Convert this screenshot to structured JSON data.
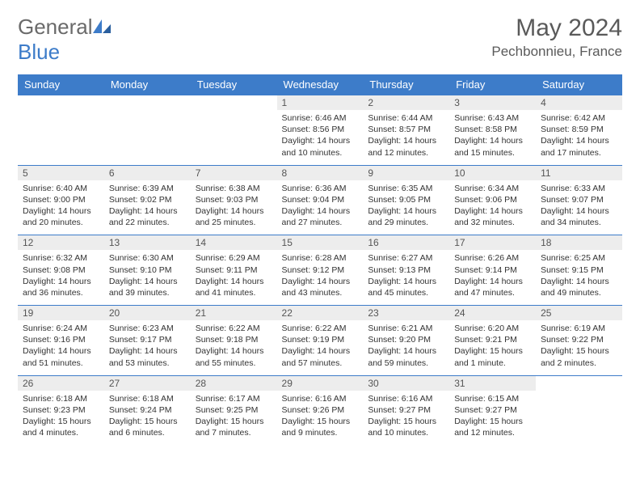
{
  "logo": {
    "textGray": "General",
    "textBlue": "Blue"
  },
  "title": {
    "month": "May 2024",
    "location": "Pechbonnieu, France"
  },
  "weekdays": [
    "Sunday",
    "Monday",
    "Tuesday",
    "Wednesday",
    "Thursday",
    "Friday",
    "Saturday"
  ],
  "colors": {
    "headerBg": "#3d7cc9",
    "headerText": "#ffffff",
    "dayNumBg": "#ededed",
    "bodyText": "#333333",
    "logoGray": "#6a6a6a",
    "logoBlue": "#3d7cc9"
  },
  "weeks": [
    [
      {
        "n": "",
        "sr": "",
        "ss": "",
        "dl": ""
      },
      {
        "n": "",
        "sr": "",
        "ss": "",
        "dl": ""
      },
      {
        "n": "",
        "sr": "",
        "ss": "",
        "dl": ""
      },
      {
        "n": "1",
        "sr": "Sunrise: 6:46 AM",
        "ss": "Sunset: 8:56 PM",
        "dl": "Daylight: 14 hours and 10 minutes."
      },
      {
        "n": "2",
        "sr": "Sunrise: 6:44 AM",
        "ss": "Sunset: 8:57 PM",
        "dl": "Daylight: 14 hours and 12 minutes."
      },
      {
        "n": "3",
        "sr": "Sunrise: 6:43 AM",
        "ss": "Sunset: 8:58 PM",
        "dl": "Daylight: 14 hours and 15 minutes."
      },
      {
        "n": "4",
        "sr": "Sunrise: 6:42 AM",
        "ss": "Sunset: 8:59 PM",
        "dl": "Daylight: 14 hours and 17 minutes."
      }
    ],
    [
      {
        "n": "5",
        "sr": "Sunrise: 6:40 AM",
        "ss": "Sunset: 9:00 PM",
        "dl": "Daylight: 14 hours and 20 minutes."
      },
      {
        "n": "6",
        "sr": "Sunrise: 6:39 AM",
        "ss": "Sunset: 9:02 PM",
        "dl": "Daylight: 14 hours and 22 minutes."
      },
      {
        "n": "7",
        "sr": "Sunrise: 6:38 AM",
        "ss": "Sunset: 9:03 PM",
        "dl": "Daylight: 14 hours and 25 minutes."
      },
      {
        "n": "8",
        "sr": "Sunrise: 6:36 AM",
        "ss": "Sunset: 9:04 PM",
        "dl": "Daylight: 14 hours and 27 minutes."
      },
      {
        "n": "9",
        "sr": "Sunrise: 6:35 AM",
        "ss": "Sunset: 9:05 PM",
        "dl": "Daylight: 14 hours and 29 minutes."
      },
      {
        "n": "10",
        "sr": "Sunrise: 6:34 AM",
        "ss": "Sunset: 9:06 PM",
        "dl": "Daylight: 14 hours and 32 minutes."
      },
      {
        "n": "11",
        "sr": "Sunrise: 6:33 AM",
        "ss": "Sunset: 9:07 PM",
        "dl": "Daylight: 14 hours and 34 minutes."
      }
    ],
    [
      {
        "n": "12",
        "sr": "Sunrise: 6:32 AM",
        "ss": "Sunset: 9:08 PM",
        "dl": "Daylight: 14 hours and 36 minutes."
      },
      {
        "n": "13",
        "sr": "Sunrise: 6:30 AM",
        "ss": "Sunset: 9:10 PM",
        "dl": "Daylight: 14 hours and 39 minutes."
      },
      {
        "n": "14",
        "sr": "Sunrise: 6:29 AM",
        "ss": "Sunset: 9:11 PM",
        "dl": "Daylight: 14 hours and 41 minutes."
      },
      {
        "n": "15",
        "sr": "Sunrise: 6:28 AM",
        "ss": "Sunset: 9:12 PM",
        "dl": "Daylight: 14 hours and 43 minutes."
      },
      {
        "n": "16",
        "sr": "Sunrise: 6:27 AM",
        "ss": "Sunset: 9:13 PM",
        "dl": "Daylight: 14 hours and 45 minutes."
      },
      {
        "n": "17",
        "sr": "Sunrise: 6:26 AM",
        "ss": "Sunset: 9:14 PM",
        "dl": "Daylight: 14 hours and 47 minutes."
      },
      {
        "n": "18",
        "sr": "Sunrise: 6:25 AM",
        "ss": "Sunset: 9:15 PM",
        "dl": "Daylight: 14 hours and 49 minutes."
      }
    ],
    [
      {
        "n": "19",
        "sr": "Sunrise: 6:24 AM",
        "ss": "Sunset: 9:16 PM",
        "dl": "Daylight: 14 hours and 51 minutes."
      },
      {
        "n": "20",
        "sr": "Sunrise: 6:23 AM",
        "ss": "Sunset: 9:17 PM",
        "dl": "Daylight: 14 hours and 53 minutes."
      },
      {
        "n": "21",
        "sr": "Sunrise: 6:22 AM",
        "ss": "Sunset: 9:18 PM",
        "dl": "Daylight: 14 hours and 55 minutes."
      },
      {
        "n": "22",
        "sr": "Sunrise: 6:22 AM",
        "ss": "Sunset: 9:19 PM",
        "dl": "Daylight: 14 hours and 57 minutes."
      },
      {
        "n": "23",
        "sr": "Sunrise: 6:21 AM",
        "ss": "Sunset: 9:20 PM",
        "dl": "Daylight: 14 hours and 59 minutes."
      },
      {
        "n": "24",
        "sr": "Sunrise: 6:20 AM",
        "ss": "Sunset: 9:21 PM",
        "dl": "Daylight: 15 hours and 1 minute."
      },
      {
        "n": "25",
        "sr": "Sunrise: 6:19 AM",
        "ss": "Sunset: 9:22 PM",
        "dl": "Daylight: 15 hours and 2 minutes."
      }
    ],
    [
      {
        "n": "26",
        "sr": "Sunrise: 6:18 AM",
        "ss": "Sunset: 9:23 PM",
        "dl": "Daylight: 15 hours and 4 minutes."
      },
      {
        "n": "27",
        "sr": "Sunrise: 6:18 AM",
        "ss": "Sunset: 9:24 PM",
        "dl": "Daylight: 15 hours and 6 minutes."
      },
      {
        "n": "28",
        "sr": "Sunrise: 6:17 AM",
        "ss": "Sunset: 9:25 PM",
        "dl": "Daylight: 15 hours and 7 minutes."
      },
      {
        "n": "29",
        "sr": "Sunrise: 6:16 AM",
        "ss": "Sunset: 9:26 PM",
        "dl": "Daylight: 15 hours and 9 minutes."
      },
      {
        "n": "30",
        "sr": "Sunrise: 6:16 AM",
        "ss": "Sunset: 9:27 PM",
        "dl": "Daylight: 15 hours and 10 minutes."
      },
      {
        "n": "31",
        "sr": "Sunrise: 6:15 AM",
        "ss": "Sunset: 9:27 PM",
        "dl": "Daylight: 15 hours and 12 minutes."
      },
      {
        "n": "",
        "sr": "",
        "ss": "",
        "dl": ""
      }
    ]
  ]
}
